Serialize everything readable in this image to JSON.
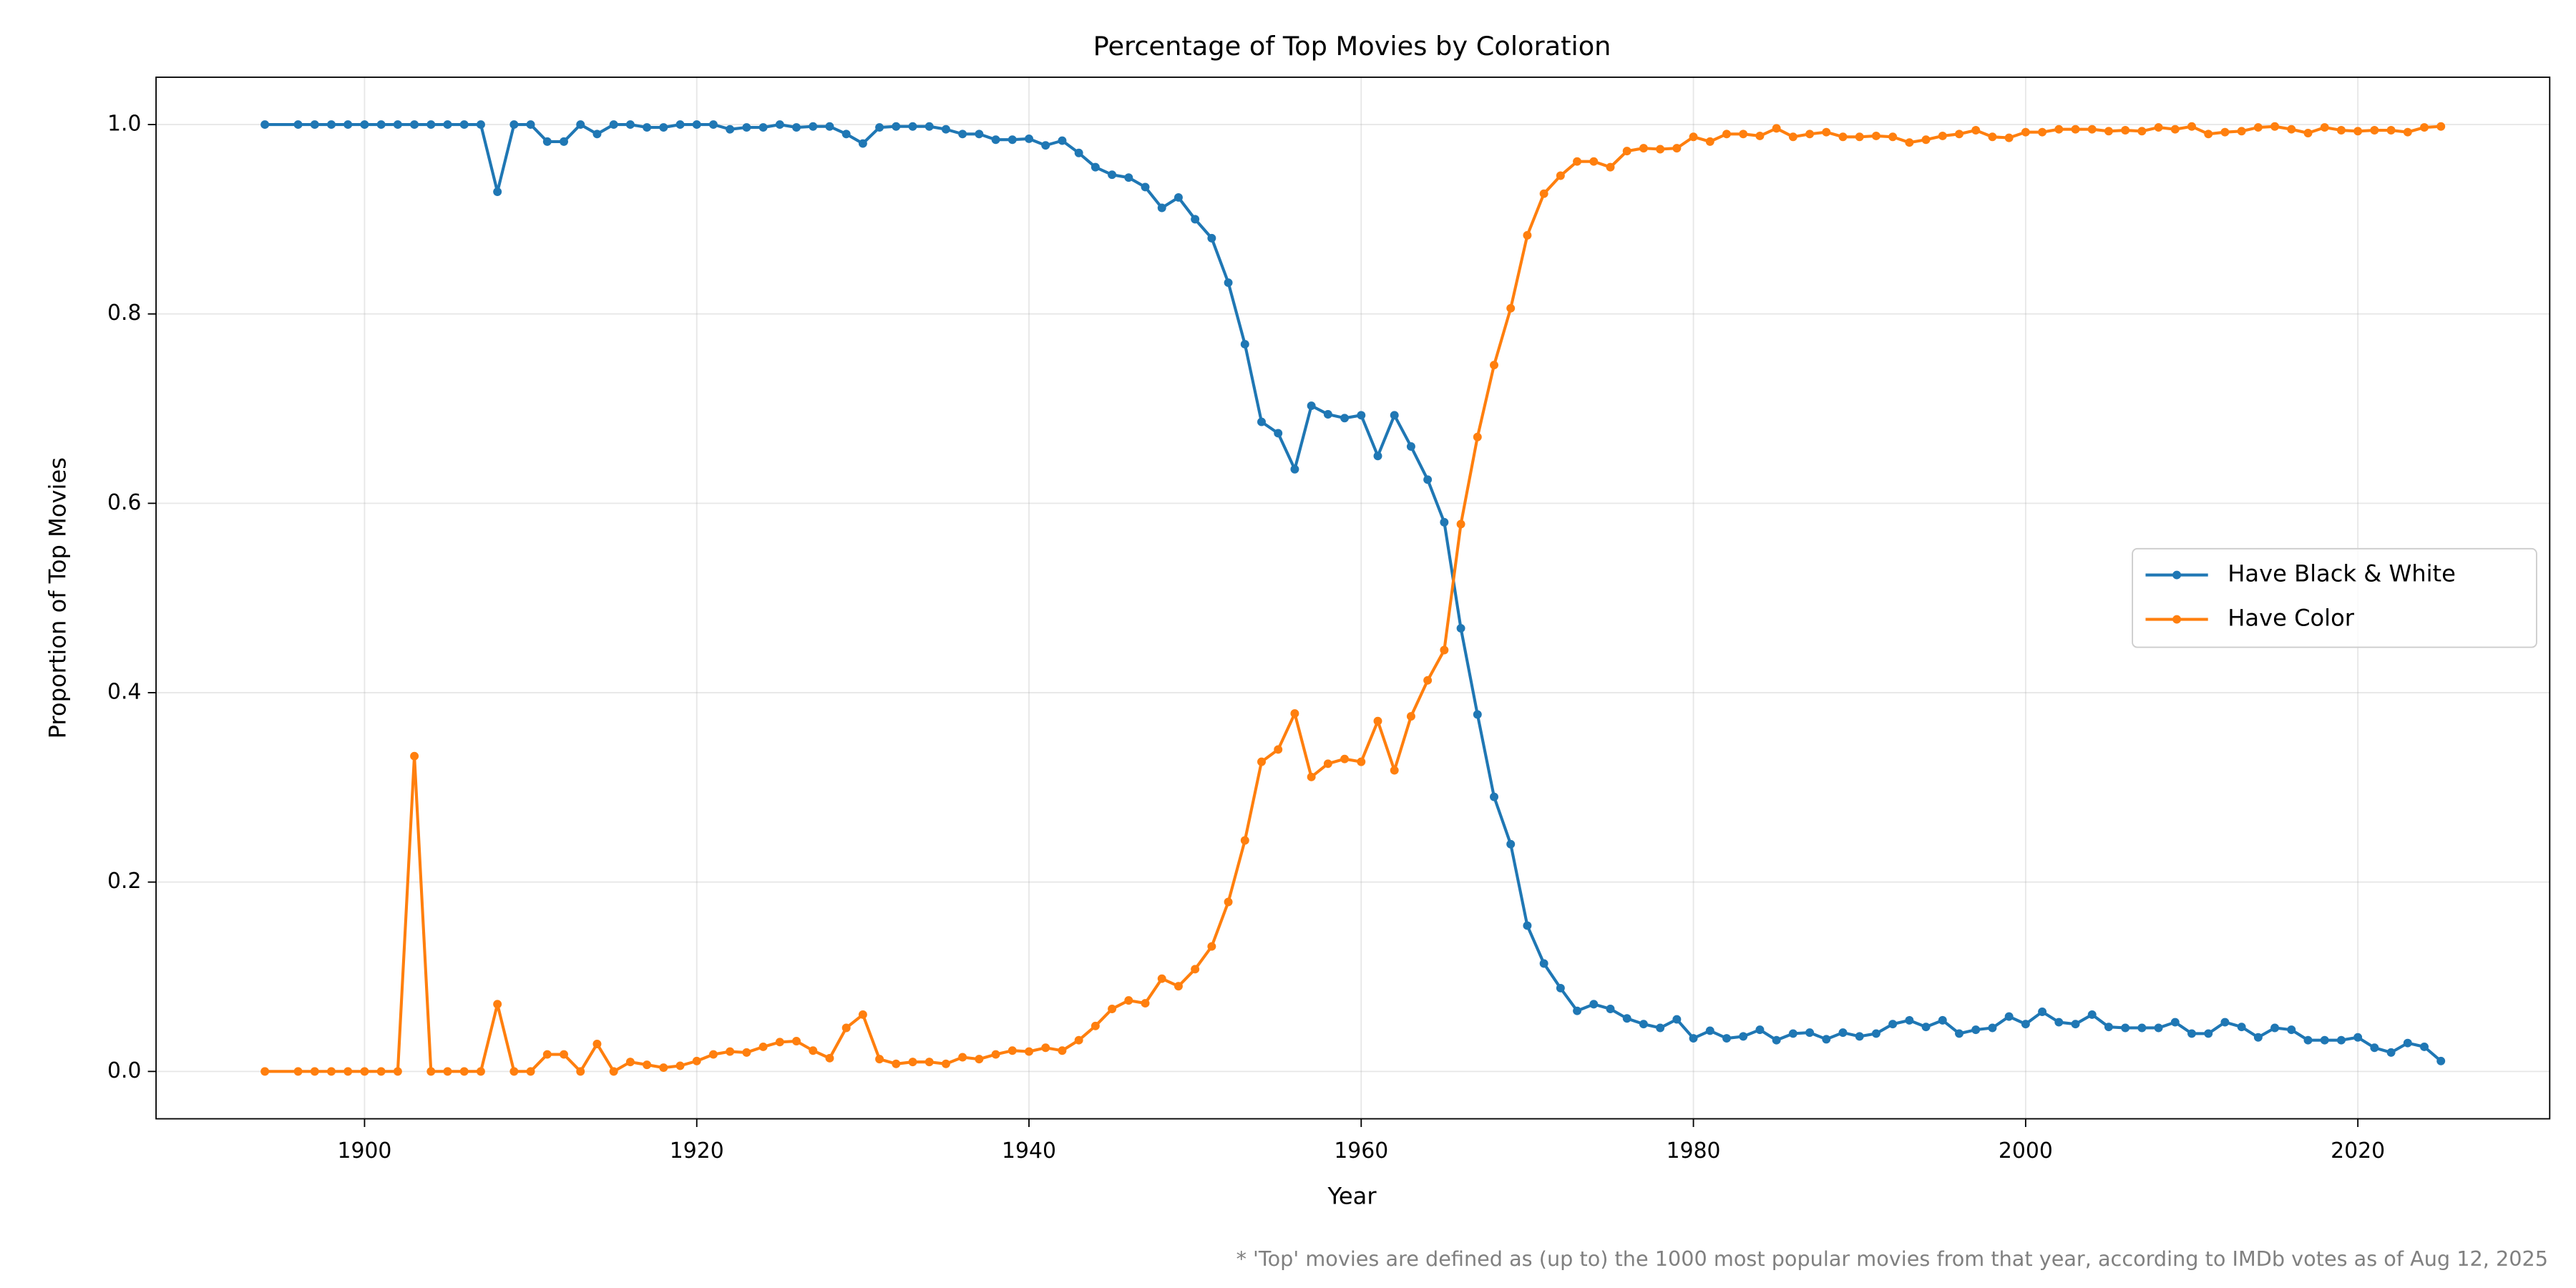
{
  "chart_data": {
    "type": "line",
    "title": "Percentage of Top Movies by Coloration",
    "xlabel": "Year",
    "ylabel": "Proportion of Top Movies",
    "footnote": "* 'Top' movies are defined as (up to) the 1000 most popular movies from that year, according to IMDb votes as of Aug 12, 2025",
    "x": [
      1894,
      1896,
      1897,
      1898,
      1899,
      1900,
      1901,
      1902,
      1903,
      1904,
      1905,
      1906,
      1907,
      1908,
      1909,
      1910,
      1911,
      1912,
      1913,
      1914,
      1915,
      1916,
      1917,
      1918,
      1919,
      1920,
      1921,
      1922,
      1923,
      1924,
      1925,
      1926,
      1927,
      1928,
      1929,
      1930,
      1931,
      1932,
      1933,
      1934,
      1935,
      1936,
      1937,
      1938,
      1939,
      1940,
      1941,
      1942,
      1943,
      1944,
      1945,
      1946,
      1947,
      1948,
      1949,
      1950,
      1951,
      1952,
      1953,
      1954,
      1955,
      1956,
      1957,
      1958,
      1959,
      1960,
      1961,
      1962,
      1963,
      1964,
      1965,
      1966,
      1967,
      1968,
      1969,
      1970,
      1971,
      1972,
      1973,
      1974,
      1975,
      1976,
      1977,
      1978,
      1979,
      1980,
      1981,
      1982,
      1983,
      1984,
      1985,
      1986,
      1987,
      1988,
      1989,
      1990,
      1991,
      1992,
      1993,
      1994,
      1995,
      1996,
      1997,
      1998,
      1999,
      2000,
      2001,
      2002,
      2003,
      2004,
      2005,
      2006,
      2007,
      2008,
      2009,
      2010,
      2011,
      2012,
      2013,
      2014,
      2015,
      2016,
      2017,
      2018,
      2019,
      2020,
      2021,
      2022,
      2023,
      2024,
      2025
    ],
    "series": [
      {
        "name": "Have Black & White",
        "color": "#1f77b4",
        "values": [
          1.0,
          1,
          1,
          1,
          1,
          1,
          1,
          1,
          1,
          1,
          1,
          1,
          1,
          0.929,
          1,
          1,
          0.982,
          0.982,
          1,
          0.99,
          1,
          1,
          0.997,
          0.997,
          1,
          1,
          1,
          0.995,
          0.997,
          0.997,
          1,
          0.997,
          0.998,
          0.998,
          0.99,
          0.98,
          0.997,
          0.998,
          0.998,
          0.998,
          0.995,
          0.99,
          0.99,
          0.984,
          0.984,
          0.985,
          0.978,
          0.983,
          0.97,
          0.955,
          0.947,
          0.944,
          0.934,
          0.912,
          0.923,
          0.9,
          0.88,
          0.833,
          0.768,
          0.686,
          0.674,
          0.636,
          0.703,
          0.694,
          0.69,
          0.693,
          0.65,
          0.693,
          0.66,
          0.625,
          0.58,
          0.468,
          0.377,
          0.29,
          0.24,
          0.154,
          0.114,
          0.088,
          0.064,
          0.071,
          0.066,
          0.056,
          0.05,
          0.046,
          0.055,
          0.035,
          0.043,
          0.035,
          0.037,
          0.044,
          0.033,
          0.04,
          0.041,
          0.034,
          0.041,
          0.037,
          0.04,
          0.05,
          0.054,
          0.047,
          0.054,
          0.04,
          0.044,
          0.046,
          0.058,
          0.05,
          0.063,
          0.052,
          0.05,
          0.06,
          0.047,
          0.046,
          0.046,
          0.046,
          0.052,
          0.04,
          0.04,
          0.052,
          0.047,
          0.036,
          0.046,
          0.044,
          0.033,
          0.033,
          0.033,
          0.036,
          0.025,
          0.02,
          0.03,
          0.026,
          0.011
        ]
      },
      {
        "name": "Have Color",
        "color": "#ff7f0e",
        "values": [
          0,
          0,
          0,
          0,
          0,
          0,
          0,
          0,
          0.333,
          0,
          0,
          0,
          0,
          0.071,
          0,
          0,
          0.018,
          0.018,
          0,
          0.029,
          0,
          0.01,
          0.007,
          0.004,
          0.006,
          0.011,
          0.018,
          0.021,
          0.02,
          0.026,
          0.031,
          0.032,
          0.022,
          0.014,
          0.046,
          0.06,
          0.013,
          0.008,
          0.01,
          0.01,
          0.008,
          0.015,
          0.013,
          0.018,
          0.022,
          0.021,
          0.025,
          0.022,
          0.033,
          0.048,
          0.066,
          0.075,
          0.072,
          0.098,
          0.09,
          0.108,
          0.132,
          0.179,
          0.244,
          0.327,
          0.34,
          0.378,
          0.311,
          0.325,
          0.33,
          0.327,
          0.37,
          0.318,
          0.375,
          0.413,
          0.445,
          0.578,
          0.67,
          0.746,
          0.806,
          0.883,
          0.927,
          0.946,
          0.961,
          0.961,
          0.955,
          0.972,
          0.975,
          0.974,
          0.975,
          0.987,
          0.982,
          0.99,
          0.99,
          0.988,
          0.996,
          0.987,
          0.99,
          0.992,
          0.987,
          0.987,
          0.988,
          0.987,
          0.981,
          0.984,
          0.988,
          0.99,
          0.994,
          0.987,
          0.986,
          0.992,
          0.992,
          0.995,
          0.995,
          0.995,
          0.993,
          0.994,
          0.993,
          0.997,
          0.995,
          0.998,
          0.99,
          0.992,
          0.993,
          0.997,
          0.998,
          0.995,
          0.991,
          0.997,
          0.994,
          0.993,
          0.994,
          0.994,
          0.992,
          0.997,
          0.998
        ]
      }
    ],
    "xlim": [
      1887.45,
      2031.55
    ],
    "xticks": [
      1900,
      1920,
      1940,
      1960,
      1980,
      2000,
      2020
    ],
    "ylim": [
      -0.05,
      1.05
    ],
    "yticks": [
      {
        "value": 0,
        "label": "0.0"
      },
      0.2,
      0.4,
      0.6,
      0.8,
      {
        "value": 1,
        "label": "1.0"
      }
    ],
    "grid": true,
    "legend": "center right"
  }
}
